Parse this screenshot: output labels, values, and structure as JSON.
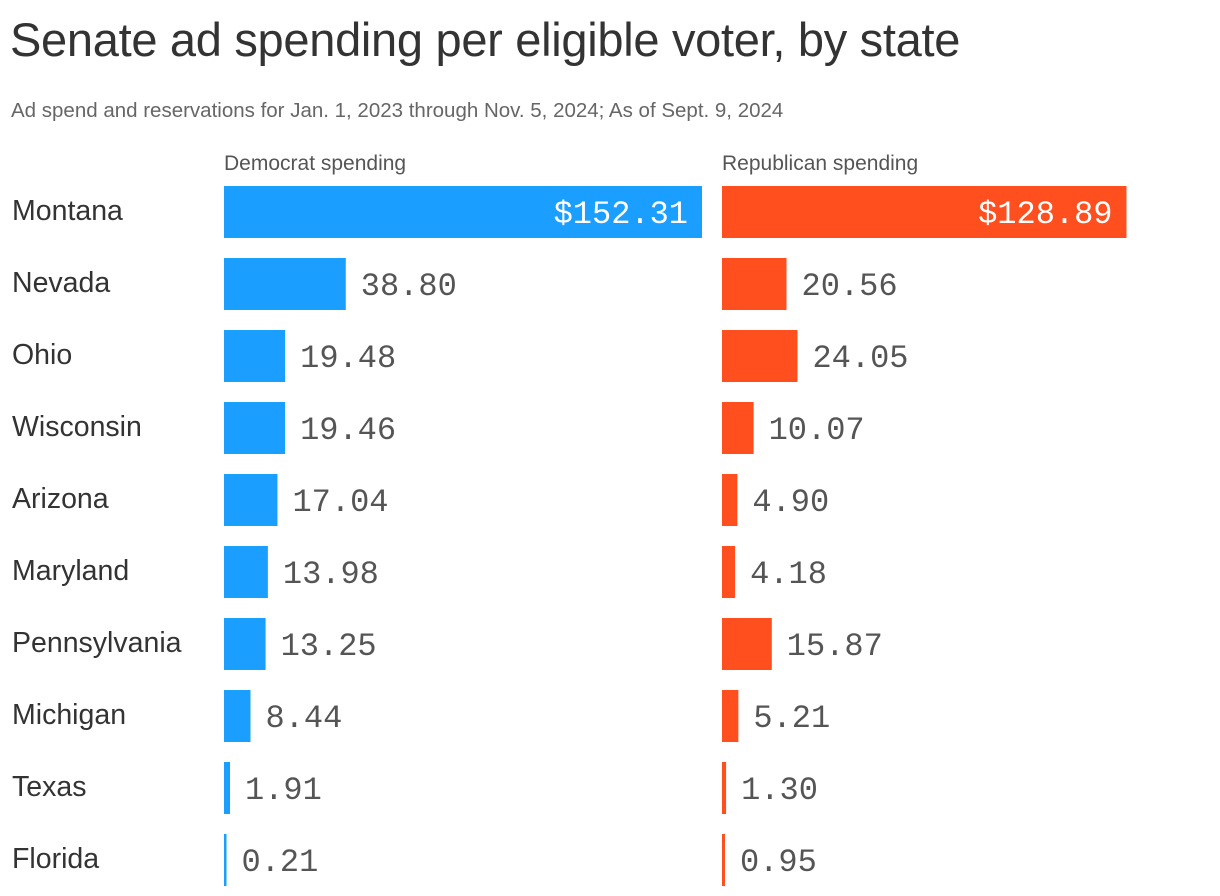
{
  "chart_data": {
    "type": "bar",
    "title": "Senate ad spending per eligible voter, by state",
    "subtitle": "Ad spend and reservations for Jan. 1, 2023 through Nov. 5, 2024; As of Sept. 9, 2024",
    "categories": [
      "Montana",
      "Nevada",
      "Ohio",
      "Wisconsin",
      "Arizona",
      "Maryland",
      "Pennsylvania",
      "Michigan",
      "Texas",
      "Florida"
    ],
    "series": [
      {
        "name": "Democrat spending",
        "color": "#1a9eff",
        "values": [
          152.31,
          38.8,
          19.48,
          19.46,
          17.04,
          13.98,
          13.25,
          8.44,
          1.91,
          0.21
        ],
        "labels": [
          "$152.31",
          "38.80",
          "19.48",
          "19.46",
          "17.04",
          "13.98",
          "13.25",
          "8.44",
          "1.91",
          "0.21"
        ]
      },
      {
        "name": "Republican spending",
        "color": "#ff4f1f",
        "values": [
          128.89,
          20.56,
          24.05,
          10.07,
          4.9,
          4.18,
          15.87,
          5.21,
          1.3,
          0.95
        ],
        "labels": [
          "$128.89",
          "20.56",
          "24.05",
          "10.07",
          "4.90",
          "4.18",
          "15.87",
          "5.21",
          "1.30",
          "0.95"
        ]
      }
    ],
    "orientation": "horizontal",
    "grid": false,
    "legend": "column headers above each panel"
  }
}
